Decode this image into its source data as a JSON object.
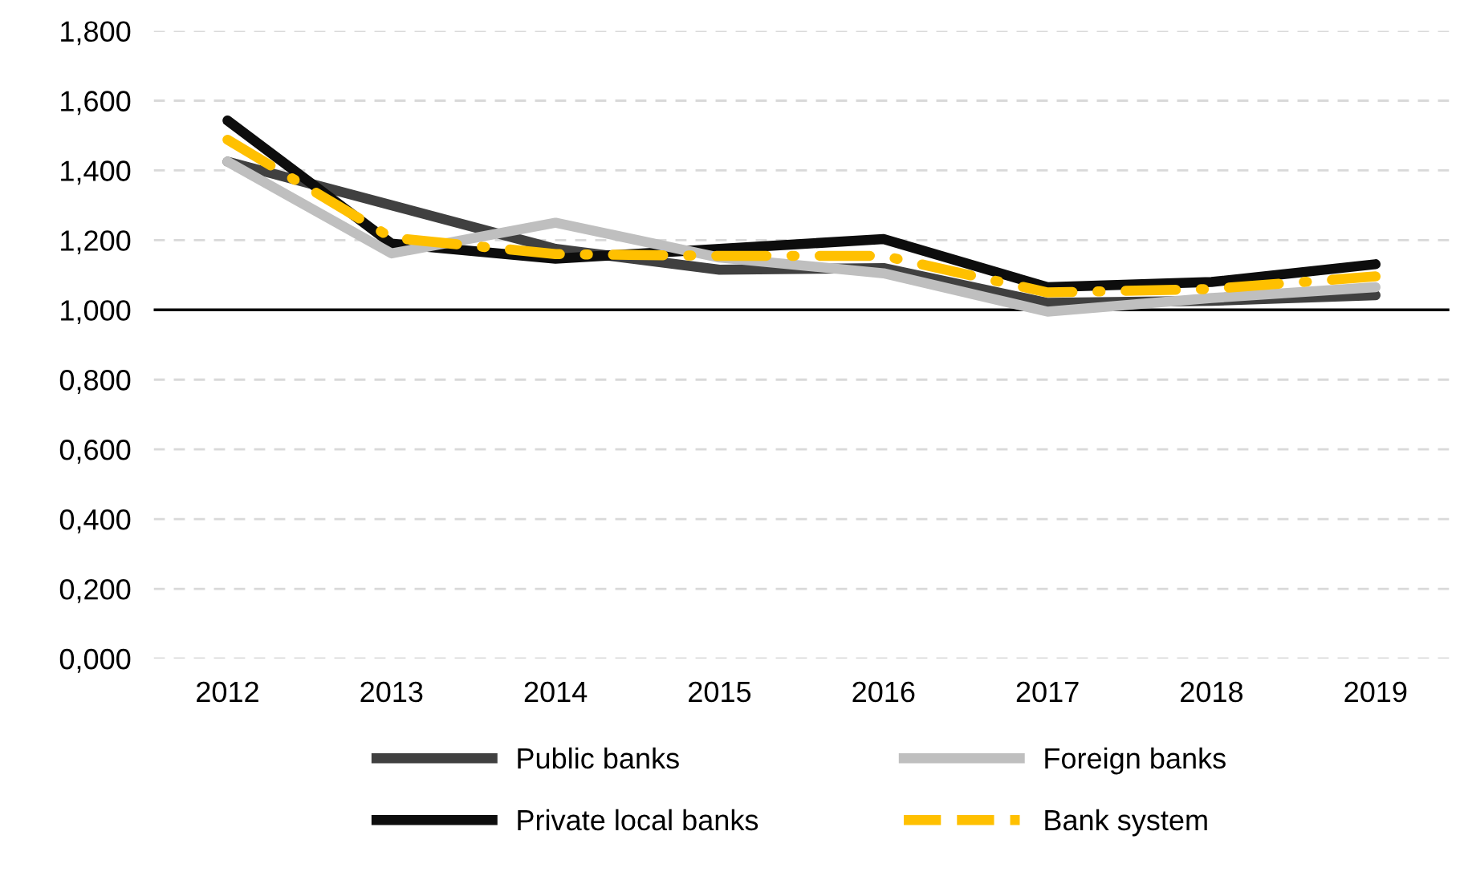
{
  "chart_data": {
    "type": "line",
    "categories": [
      "2012",
      "2013",
      "2014",
      "2015",
      "2016",
      "2017",
      "2018",
      "2019"
    ],
    "series": [
      {
        "name": "Public banks",
        "color": "#404040",
        "values": [
          1.425,
          1.3,
          1.175,
          1.115,
          1.12,
          1.02,
          1.026,
          1.042
        ]
      },
      {
        "name": "Private local banks",
        "color": "#0d0d0d",
        "values": [
          1.543,
          1.19,
          1.147,
          1.175,
          1.203,
          1.065,
          1.08,
          1.131
        ]
      },
      {
        "name": "Foreign banks",
        "color": "#bfbfbf",
        "values": [
          1.425,
          1.162,
          1.25,
          1.15,
          1.105,
          0.995,
          1.034,
          1.065
        ]
      },
      {
        "name": "Bank system",
        "color": "#ffc000",
        "line_style": "dashdot",
        "values": [
          1.488,
          1.207,
          1.16,
          1.155,
          1.155,
          1.05,
          1.06,
          1.096
        ]
      }
    ],
    "ylim": [
      0,
      1.8
    ],
    "yticks": [
      {
        "value": 0,
        "label": "0,000"
      },
      {
        "value": 0.2,
        "label": "0,200"
      },
      {
        "value": 0.4,
        "label": "0,400"
      },
      {
        "value": 0.6,
        "label": "0,600"
      },
      {
        "value": 0.8,
        "label": "0,800"
      },
      {
        "value": 1.0,
        "label": "1,000"
      },
      {
        "value": 1.2,
        "label": "1,200"
      },
      {
        "value": 1.4,
        "label": "1,400"
      },
      {
        "value": 1.6,
        "label": "1,600"
      },
      {
        "value": 1.8,
        "label": "1,800"
      }
    ],
    "ref_lines": [
      {
        "axis": "y",
        "value": 1.0,
        "label": null,
        "color": "#000000"
      }
    ],
    "grid": "y",
    "legend": "bottom",
    "line_style": "solid",
    "marker": "none"
  }
}
